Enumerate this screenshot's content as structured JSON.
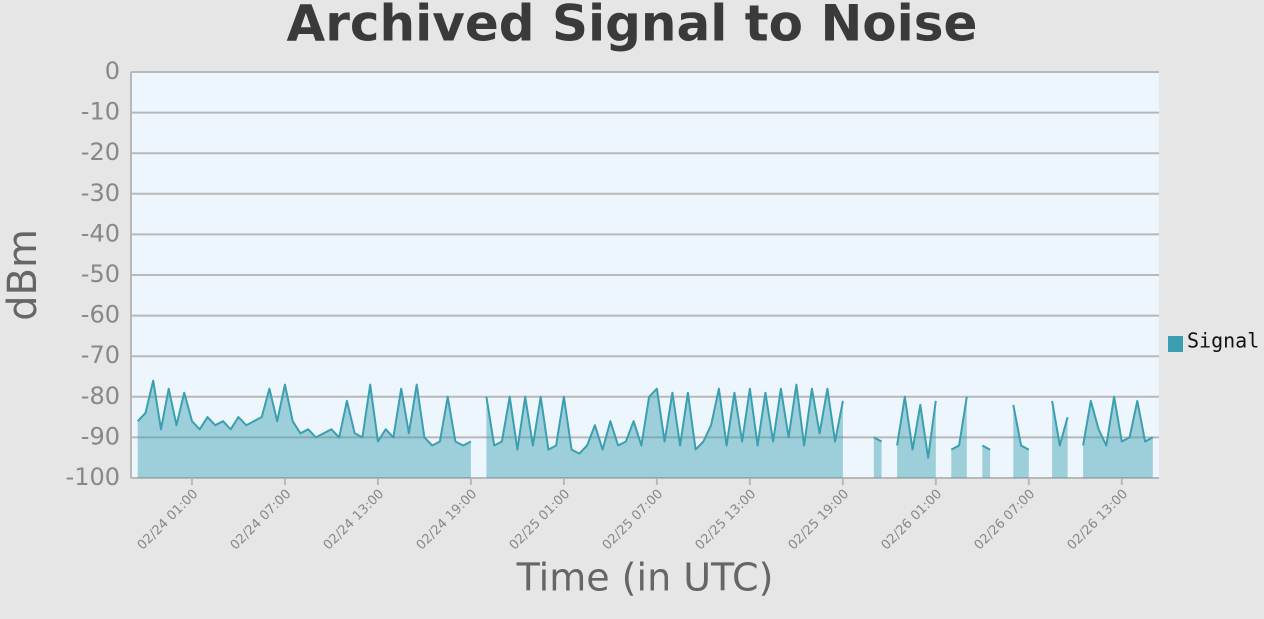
{
  "chart_data": {
    "type": "line",
    "title": "Archived Signal to Noise",
    "xlabel": "Time (in UTC)",
    "ylabel": "dBm",
    "x": [
      "02/23 21:30",
      "02/23 22:00",
      "02/23 22:30",
      "02/23 23:00",
      "02/23 23:30",
      "02/24 00:00",
      "02/24 00:30",
      "02/24 01:00",
      "02/24 01:30",
      "02/24 02:00",
      "02/24 02:30",
      "02/24 03:00",
      "02/24 03:30",
      "02/24 04:00",
      "02/24 04:30",
      "02/24 05:00",
      "02/24 05:30",
      "02/24 06:00",
      "02/24 06:30",
      "02/24 07:00",
      "02/24 07:30",
      "02/24 08:00",
      "02/24 08:30",
      "02/24 09:00",
      "02/24 09:30",
      "02/24 10:00",
      "02/24 10:30",
      "02/24 11:00",
      "02/24 11:30",
      "02/24 12:00",
      "02/24 12:30",
      "02/24 13:00",
      "02/24 13:30",
      "02/24 14:00",
      "02/24 14:30",
      "02/24 15:00",
      "02/24 15:30",
      "02/24 16:00",
      "02/24 16:30",
      "02/24 17:00",
      "02/24 17:30",
      "02/24 18:00",
      "02/24 18:30",
      "02/24 19:00",
      "02/24 19:30",
      "02/24 20:00",
      "02/24 20:30",
      "02/24 21:00",
      "02/24 21:30",
      "02/24 22:00",
      "02/24 22:30",
      "02/24 23:00",
      "02/24 23:30",
      "02/25 00:00",
      "02/25 00:30",
      "02/25 01:00",
      "02/25 01:30",
      "02/25 02:00",
      "02/25 02:30",
      "02/25 03:00",
      "02/25 03:30",
      "02/25 04:00",
      "02/25 04:30",
      "02/25 05:00",
      "02/25 05:30",
      "02/25 06:00",
      "02/25 06:30",
      "02/25 07:00",
      "02/25 07:30",
      "02/25 08:00",
      "02/25 08:30",
      "02/25 09:00",
      "02/25 09:30",
      "02/25 10:00",
      "02/25 10:30",
      "02/25 11:00",
      "02/25 11:30",
      "02/25 12:00",
      "02/25 12:30",
      "02/25 13:00",
      "02/25 13:30",
      "02/25 14:00",
      "02/25 14:30",
      "02/25 15:00",
      "02/25 15:30",
      "02/25 16:00",
      "02/25 16:30",
      "02/25 17:00",
      "02/25 17:30",
      "02/25 18:00",
      "02/25 18:30",
      "02/25 19:00",
      "02/25 19:30",
      "02/25 20:00",
      "02/25 20:30",
      "02/25 21:00",
      "02/25 21:30",
      "02/25 22:00",
      "02/25 22:30",
      "02/25 23:00",
      "02/25 23:30",
      "02/26 00:00",
      "02/26 00:30",
      "02/26 01:00",
      "02/26 01:30",
      "02/26 02:00",
      "02/26 02:30",
      "02/26 03:00",
      "02/26 03:30",
      "02/26 04:00",
      "02/26 04:30",
      "02/26 05:00",
      "02/26 05:30",
      "02/26 06:00",
      "02/26 06:30",
      "02/26 07:00",
      "02/26 07:30",
      "02/26 08:00",
      "02/26 08:30",
      "02/26 09:00",
      "02/26 09:30",
      "02/26 10:00",
      "02/26 10:30",
      "02/26 11:00",
      "02/26 11:30",
      "02/26 12:00",
      "02/26 12:30",
      "02/26 13:00",
      "02/26 13:30",
      "02/26 14:00",
      "02/26 14:30",
      "02/26 15:00"
    ],
    "series": [
      {
        "name": "Signal",
        "color": "#3a9fb0",
        "values": [
          -86,
          -84,
          -76,
          -88,
          -78,
          -87,
          -79,
          -86,
          -88,
          -85,
          -87,
          -86,
          -88,
          -85,
          -87,
          -86,
          -85,
          -78,
          -86,
          -77,
          -86,
          -89,
          -88,
          -90,
          -89,
          -88,
          -90,
          -81,
          -89,
          -90,
          -77,
          -91,
          -88,
          -90,
          -78,
          -89,
          -77,
          -90,
          -92,
          -91,
          -80,
          -91,
          -92,
          -91,
          null,
          -80,
          -92,
          -91,
          -80,
          -93,
          -80,
          -92,
          -80,
          -93,
          -92,
          -80,
          -93,
          -94,
          -92,
          -87,
          -93,
          -86,
          -92,
          -91,
          -86,
          -92,
          -80,
          -78,
          -91,
          -79,
          -92,
          -79,
          -93,
          -91,
          -87,
          -78,
          -92,
          -79,
          -91,
          -78,
          -92,
          -79,
          -91,
          -78,
          -90,
          -77,
          -92,
          -78,
          -89,
          -78,
          -91,
          -81,
          null,
          null,
          null,
          -90,
          -91,
          null,
          -92,
          -80,
          -93,
          -82,
          -95,
          -81,
          null,
          -93,
          -92,
          -80,
          null,
          -92,
          -93,
          null,
          null,
          -82,
          -92,
          -93,
          null,
          null,
          -81,
          -92,
          -85,
          null,
          -92,
          -81,
          -88,
          -92,
          -80,
          -91,
          -90,
          -81,
          -91,
          -90
        ]
      }
    ],
    "xlim": [
      "02/23 21:04",
      "02/26 15:24"
    ],
    "xticks": [
      "02/24 01:00",
      "02/24 07:00",
      "02/24 13:00",
      "02/24 19:00",
      "02/25 01:00",
      "02/25 07:00",
      "02/25 13:00",
      "02/25 19:00",
      "02/26 01:00",
      "02/26 07:00",
      "02/26 13:00"
    ],
    "ylim": [
      -100,
      0
    ],
    "yticks": [
      0,
      -10,
      -20,
      -30,
      -40,
      -50,
      -60,
      -70,
      -80,
      -90,
      -100
    ],
    "grid": true,
    "legend": "right"
  }
}
